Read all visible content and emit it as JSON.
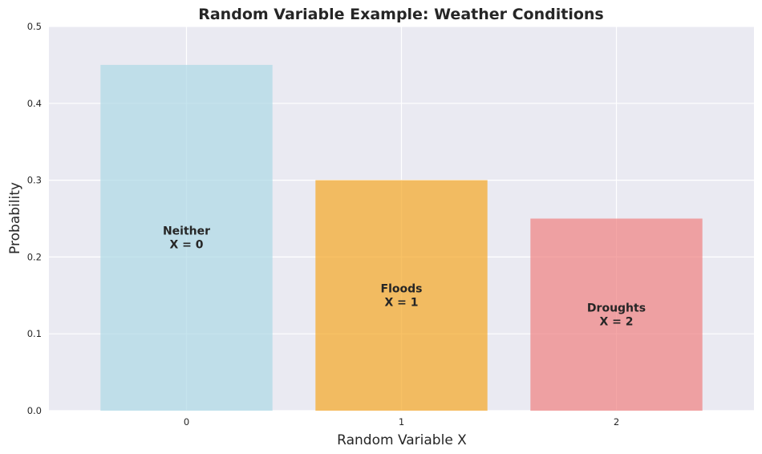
{
  "chart_data": {
    "type": "bar",
    "title": "Random Variable Example: Weather Conditions",
    "xlabel": "Random Variable X",
    "ylabel": "Probability",
    "categories": [
      "0",
      "1",
      "2"
    ],
    "values": [
      0.45,
      0.3,
      0.25
    ],
    "bar_labels": [
      {
        "line1": "Neither",
        "line2": "X = 0"
      },
      {
        "line1": "Floods",
        "line2": "X = 1"
      },
      {
        "line1": "Droughts",
        "line2": "X = 2"
      }
    ],
    "colors": [
      "#add8e6",
      "#f5a623",
      "#f08080"
    ],
    "ylim": [
      0,
      0.5
    ],
    "yticks": [
      "0.0",
      "0.1",
      "0.2",
      "0.3",
      "0.4",
      "0.5"
    ],
    "grid": true,
    "background": "#eaeaf2"
  }
}
